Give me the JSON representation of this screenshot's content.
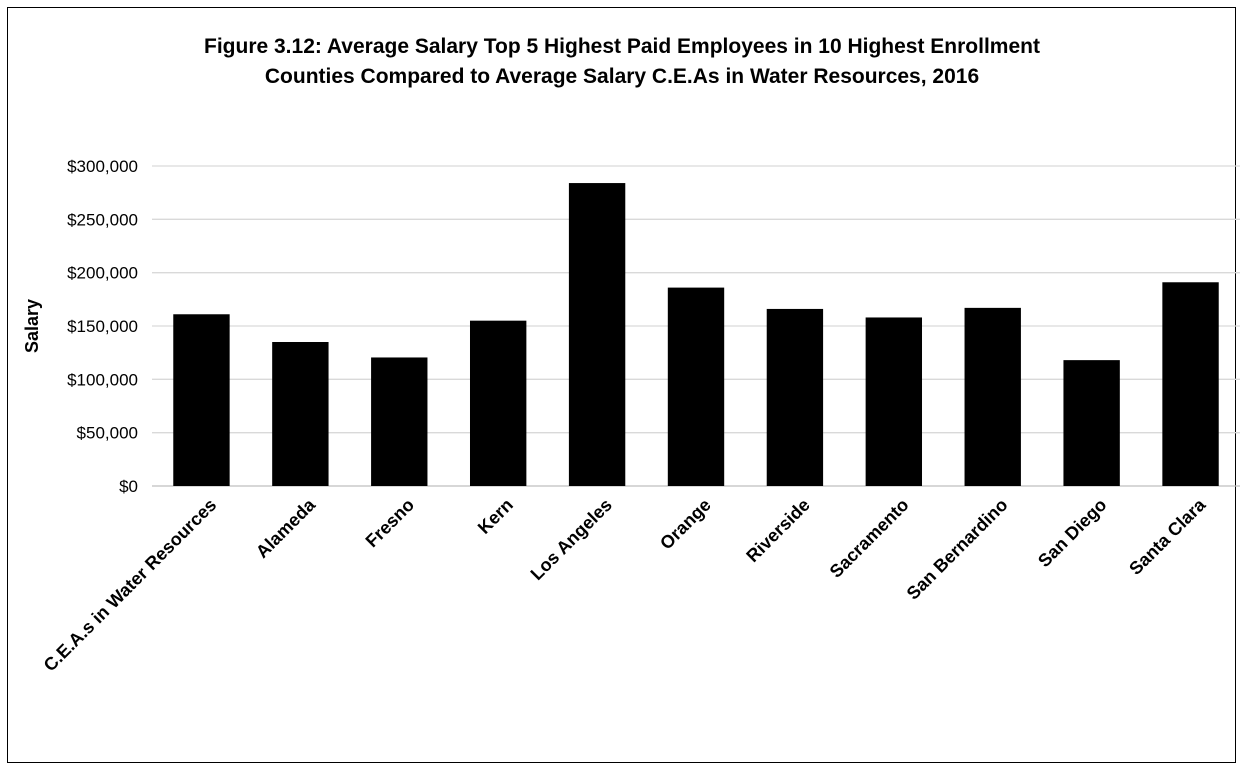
{
  "chart_data": {
    "type": "bar",
    "title": "Figure 3.12: Average Salary Top 5 Highest Paid Employees in 10 Highest Enrollment",
    "subtitle": "Counties Compared to Average Salary C.E.As in Water Resources, 2016",
    "ylabel": "Salary",
    "xlabel": "",
    "ylim": [
      0,
      300000
    ],
    "yticks": [
      0,
      50000,
      100000,
      150000,
      200000,
      250000,
      300000
    ],
    "ytick_labels": [
      "$0",
      "$50,000",
      "$100,000",
      "$150,000",
      "$200,000",
      "$250,000",
      "$300,000"
    ],
    "categories": [
      "C.E.A.s in Water Resources",
      "Alameda",
      "Fresno",
      "Kern",
      "Los Angeles",
      "Orange",
      "Riverside",
      "Sacramento",
      "San Bernardino",
      "San Diego",
      "Santa Clara"
    ],
    "values": [
      161000,
      135000,
      120500,
      155000,
      284000,
      186000,
      166000,
      158000,
      167000,
      118000,
      191000
    ],
    "grid": true,
    "colors": {
      "bar": "#000000",
      "grid": "#d9d9d9",
      "axis": "#bfbfbf"
    }
  }
}
